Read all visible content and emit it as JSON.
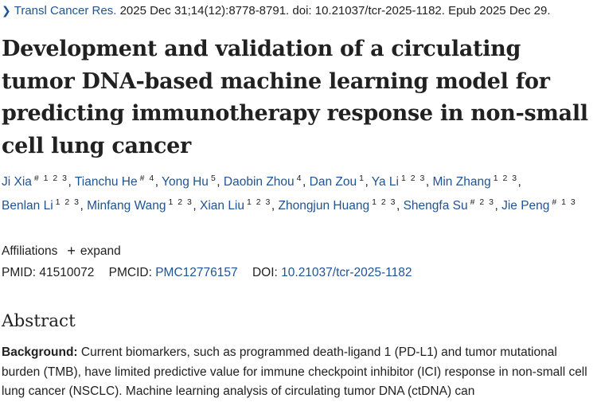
{
  "citation": {
    "journal": "Transl Cancer Res.",
    "details": "2025 Dec 31;14(12):8778-8791. doi: 10.21037/tcr-2025-1182. Epub 2025 Dec 29."
  },
  "article": {
    "title": "Development and validation of a circulating tumor DNA-based machine learning model for predicting immunotherapy response in non-small cell lung cancer"
  },
  "authors": [
    {
      "name": "Ji Xia",
      "sup": "# 1 2 3"
    },
    {
      "name": "Tianchu He",
      "sup": "# 4"
    },
    {
      "name": "Yong Hu",
      "sup": "5"
    },
    {
      "name": "Daobin Zhou",
      "sup": "4"
    },
    {
      "name": "Dan Zou",
      "sup": "1"
    },
    {
      "name": "Ya Li",
      "sup": "1 2 3"
    },
    {
      "name": "Min Zhang",
      "sup": "1 2 3"
    },
    {
      "name": "Benlan Li",
      "sup": "1 2 3"
    },
    {
      "name": "Minfang Wang",
      "sup": "1 2 3"
    },
    {
      "name": "Xian Liu",
      "sup": "1 2 3"
    },
    {
      "name": "Zhongjun Huang",
      "sup": "1 2 3"
    },
    {
      "name": "Shengfa Su",
      "sup": "# 2 3"
    },
    {
      "name": "Jie Peng",
      "sup": "# 1 3"
    }
  ],
  "affiliations": {
    "label": "Affiliations",
    "expand_label": "expand"
  },
  "identifiers": {
    "pmid_label": "PMID:",
    "pmid": "41510072",
    "pmcid_label": "PMCID:",
    "pmcid": "PMC12776157",
    "doi_label": "DOI:",
    "doi": "10.21037/tcr-2025-1182"
  },
  "abstract": {
    "heading": "Abstract",
    "background_label": "Background:",
    "background_text": " Current biomarkers, such as programmed death-ligand 1 (PD-L1) and tumor mutational burden (TMB), have limited predictive value for immune checkpoint inhibitor (ICI) response in non-small cell lung cancer (NSCLC). Machine learning analysis of circulating tumor DNA (ctDNA) can"
  },
  "colors": {
    "link": "#205493",
    "text": "#212121"
  }
}
